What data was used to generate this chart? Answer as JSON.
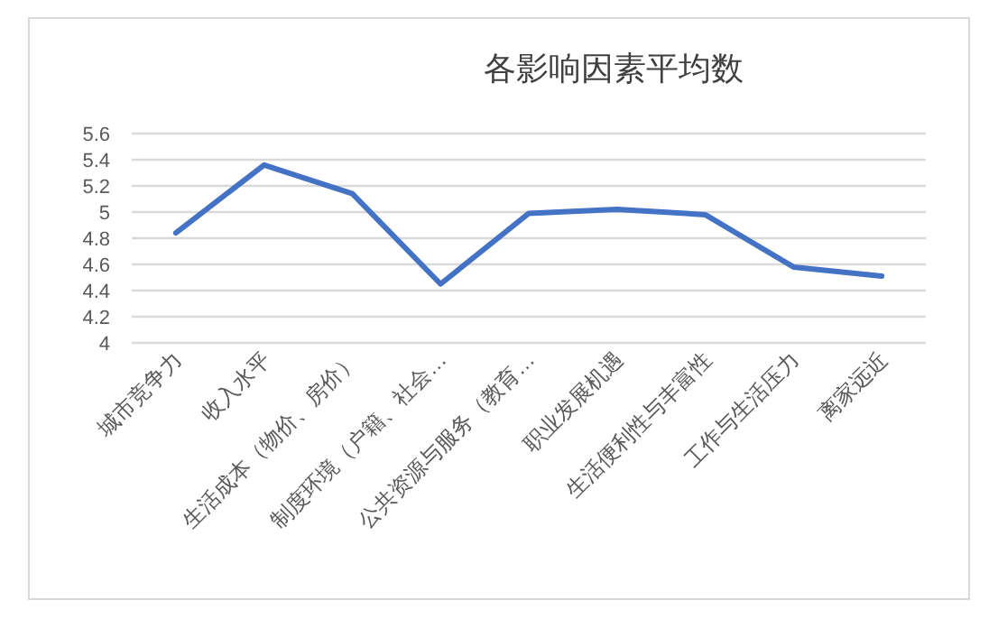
{
  "chart_data": {
    "type": "line",
    "title": "各影响因素平均数",
    "categories": [
      "城市竞争力",
      "收入水平",
      "生活成本（物价、房价）",
      "制度环境（户籍、社会…",
      "公共资源与服务（教育…",
      "职业发展机遇",
      "生活便利性与丰富性",
      "工作与生活压力",
      "离家远近"
    ],
    "series": [
      {
        "color": "#4472c4",
        "values": [
          4.84,
          5.36,
          5.14,
          4.45,
          4.99,
          5.02,
          4.98,
          4.58,
          4.51
        ]
      }
    ],
    "ylim": [
      4,
      5.6
    ],
    "yticks": [
      {
        "value": 4,
        "label": "4"
      },
      {
        "value": 4.2,
        "label": "4.2"
      },
      {
        "value": 4.4,
        "label": "4.4"
      },
      {
        "value": 4.6,
        "label": "4.6"
      },
      {
        "value": 4.8,
        "label": "4.8"
      },
      {
        "value": 5,
        "label": "5"
      },
      {
        "value": 5.2,
        "label": "5.2"
      },
      {
        "value": 5.4,
        "label": "5.4"
      },
      {
        "value": 5.6,
        "label": "5.6"
      }
    ],
    "grid": "y"
  }
}
